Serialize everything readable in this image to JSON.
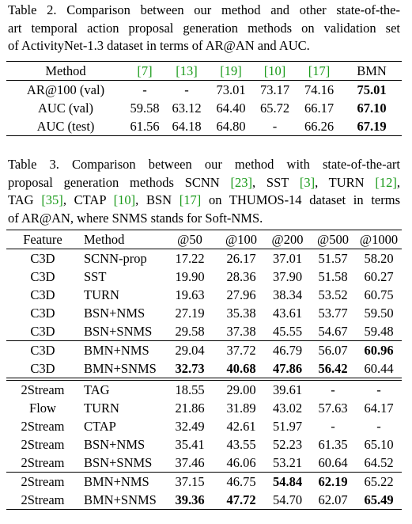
{
  "table2": {
    "caption_lines": [
      [
        "Table 2.  Comparison between our method and other state-of-the-"
      ],
      [
        "art temporal action proposal generation methods on validation set"
      ],
      [
        "of ActivityNet-1.3 dataset in terms of AR@AN and AUC."
      ]
    ],
    "header": [
      "Method",
      "[7]",
      "[13]",
      "[19]",
      "[10]",
      "[17]",
      "BMN"
    ],
    "rows": [
      [
        "AR@100 (val)",
        "-",
        "-",
        "73.01",
        "73.17",
        "74.16",
        {
          "text": "75.01",
          "bold": true
        }
      ],
      [
        "AUC (val)",
        "59.58",
        "63.12",
        "64.40",
        "65.72",
        "66.17",
        {
          "text": "67.10",
          "bold": true
        }
      ],
      [
        "AUC (test)",
        "61.56",
        "64.18",
        "64.80",
        "-",
        "66.26",
        {
          "text": "67.19",
          "bold": true
        }
      ]
    ]
  },
  "table3": {
    "caption_lines": [
      [
        "Table 3.  Comparison between our method with state-of-the-art"
      ],
      [
        "proposal generation methods SCNN ",
        "[23]",
        ", SST ",
        "[3]",
        ", TURN ",
        "[12]",
        ","
      ],
      [
        "TAG ",
        "[35]",
        ", CTAP ",
        "[10]",
        ", BSN ",
        "[17]",
        " on THUMOS-14 dataset in terms"
      ],
      [
        "of AR@AN, where SNMS stands for Soft-NMS."
      ]
    ],
    "header": [
      "Feature",
      "Method",
      "@50",
      "@100",
      "@200",
      "@500",
      "@1000"
    ],
    "sections": [
      {
        "groups": [
          [
            [
              "C3D",
              "SCNN-prop",
              "17.22",
              "26.17",
              "37.01",
              "51.57",
              "58.20"
            ],
            [
              "C3D",
              "SST",
              "19.90",
              "28.36",
              "37.90",
              "51.58",
              "60.27"
            ],
            [
              "C3D",
              "TURN",
              "19.63",
              "27.96",
              "38.34",
              "53.52",
              "60.75"
            ],
            [
              "C3D",
              "BSN+NMS",
              "27.19",
              "35.38",
              "43.61",
              "53.77",
              "59.50"
            ],
            [
              "C3D",
              "BSN+SNMS",
              "29.58",
              "37.38",
              "45.55",
              "54.67",
              "59.48"
            ]
          ],
          [
            [
              "C3D",
              "BMN+NMS",
              "29.04",
              "37.72",
              "46.79",
              "56.07",
              {
                "text": "60.96",
                "bold": true
              }
            ],
            [
              "C3D",
              "BMN+SNMS",
              {
                "text": "32.73",
                "bold": true
              },
              {
                "text": "40.68",
                "bold": true
              },
              {
                "text": "47.86",
                "bold": true
              },
              {
                "text": "56.42",
                "bold": true
              },
              "60.44"
            ]
          ]
        ]
      },
      {
        "groups": [
          [
            [
              "2Stream",
              "TAG",
              "18.55",
              "29.00",
              "39.61",
              "-",
              "-"
            ],
            [
              "Flow",
              "TURN",
              "21.86",
              "31.89",
              "43.02",
              "57.63",
              "64.17"
            ],
            [
              "2Stream",
              "CTAP",
              "32.49",
              "42.61",
              "51.97",
              "-",
              "-"
            ],
            [
              "2Stream",
              "BSN+NMS",
              "35.41",
              "43.55",
              "52.23",
              "61.35",
              "65.10"
            ],
            [
              "2Stream",
              "BSN+SNMS",
              "37.46",
              "46.06",
              "53.21",
              "60.64",
              "64.52"
            ]
          ],
          [
            [
              "2Stream",
              "BMN+NMS",
              "37.15",
              "46.75",
              {
                "text": "54.84",
                "bold": true
              },
              {
                "text": "62.19",
                "bold": true
              },
              "65.22"
            ],
            [
              "2Stream",
              "BMN+SNMS",
              {
                "text": "39.36",
                "bold": true
              },
              {
                "text": "47.72",
                "bold": true
              },
              "54.70",
              "62.07",
              {
                "text": "65.49",
                "bold": true
              }
            ]
          ]
        ]
      }
    ]
  }
}
